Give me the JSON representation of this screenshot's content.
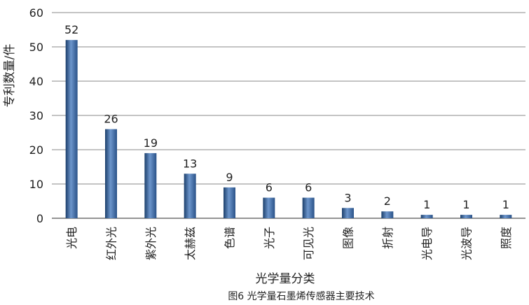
{
  "chart_data": {
    "type": "bar",
    "caption": "图6  光学量石墨烯传感器主要技术",
    "xlabel": "光学量分类",
    "ylabel": "专利数量/件",
    "ylim": [
      0,
      60
    ],
    "yticks": [
      "0",
      "10",
      "20",
      "30",
      "40",
      "50",
      "60"
    ],
    "categories": [
      "光电",
      "红外光",
      "紫外光",
      "太赫兹",
      "色谱",
      "光子",
      "可见光",
      "图像",
      "折射",
      "光电导",
      "光波导",
      "照度"
    ],
    "values": [
      52,
      26,
      19,
      13,
      9,
      6,
      6,
      3,
      2,
      1,
      1,
      1
    ],
    "grid": true,
    "legend": "none",
    "colors": {
      "bar_dark": "#1c3f6b",
      "bar_mid": "#3c6aa6",
      "bar_light": "#6d96cc",
      "grid": "#8a8a8a"
    }
  }
}
